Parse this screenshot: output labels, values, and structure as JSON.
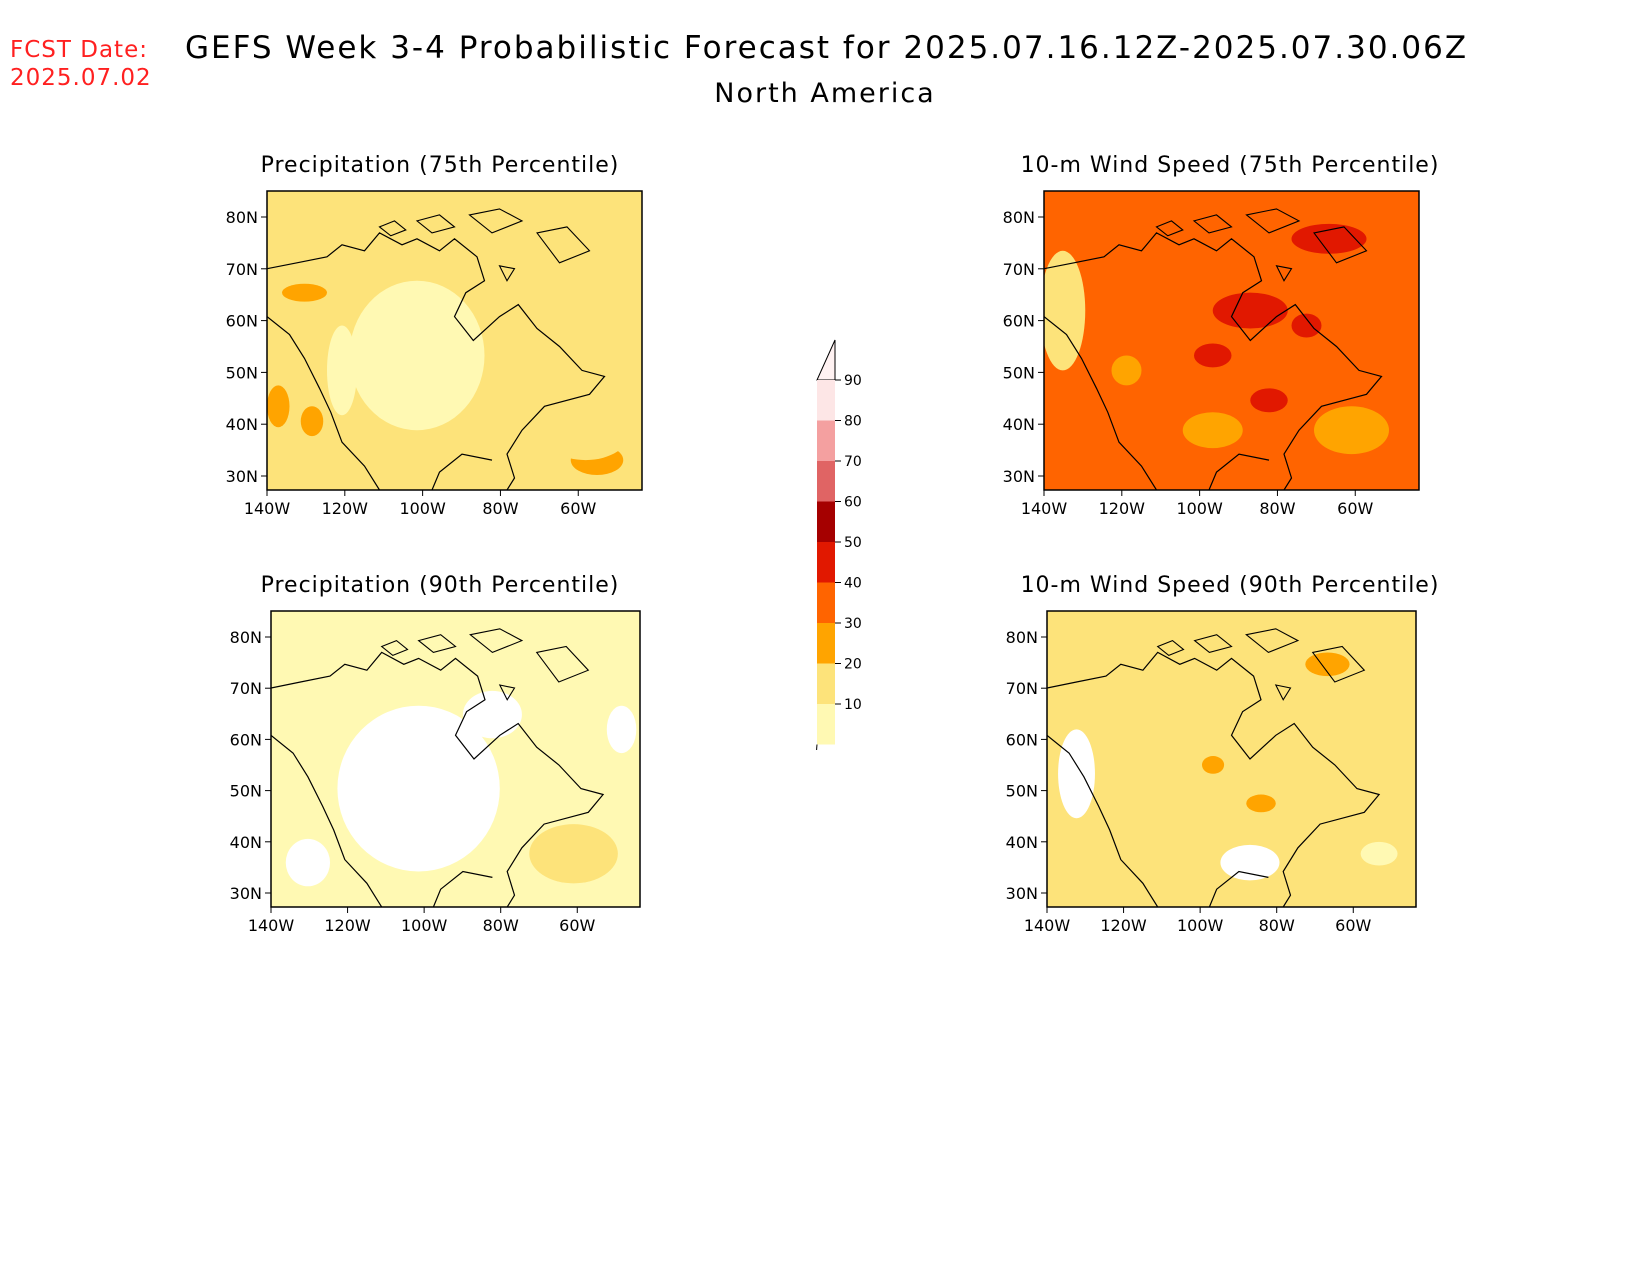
{
  "header": {
    "fcst_label": "FCST Date:",
    "fcst_date": "2025.07.02",
    "title": "GEFS Week 3-4 Probabilistic Forecast for 2025.07.16.12Z-2025.07.30.06Z",
    "subtitle": "North America"
  },
  "colors": {
    "c10": "#fff9b3",
    "c20": "#fde37a",
    "c30": "#ffa400",
    "c40": "#ff6400",
    "c50": "#e11800",
    "c60": "#a50000",
    "c70": "#e06464",
    "c80": "#f4a0a0",
    "c90": "#fde6e6",
    "title_red": "#ff2020"
  },
  "axes": {
    "lat_ticks": [
      "80N",
      "70N",
      "60N",
      "50N",
      "40N",
      "30N"
    ],
    "lon_ticks": [
      "140W",
      "120W",
      "100W",
      "80W",
      "60W"
    ]
  },
  "panels": [
    {
      "id": "precip75",
      "title": "Precipitation (75th Percentile)",
      "base_color": "c20"
    },
    {
      "id": "wind75",
      "title": "10-m Wind Speed (75th Percentile)",
      "base_color": "c40"
    },
    {
      "id": "precip90",
      "title": "Precipitation (90th Percentile)",
      "base_color": "c10"
    },
    {
      "id": "wind90",
      "title": "10-m Wind Speed (90th Percentile)",
      "base_color": "c20"
    }
  ],
  "legend": {
    "labels": [
      "90",
      "80",
      "70",
      "60",
      "50",
      "40",
      "30",
      "20",
      "10"
    ]
  }
}
